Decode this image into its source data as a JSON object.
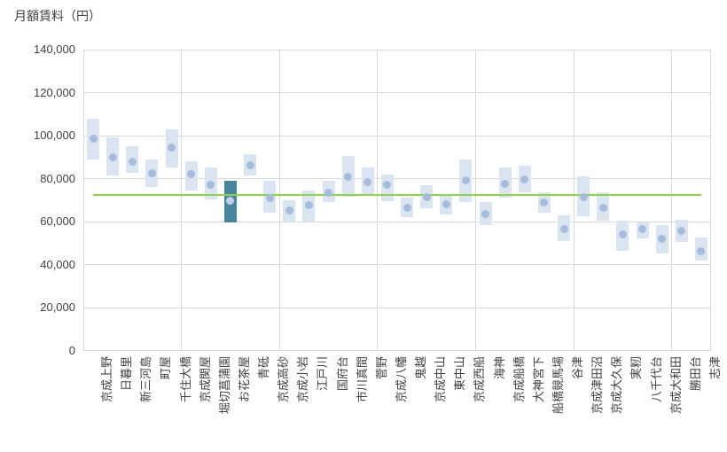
{
  "chart_data": {
    "type": "range-bar-with-median-dots",
    "title": "月額賃料（円）",
    "ylabel": "月額賃料（円）",
    "ylim": [
      0,
      140000
    ],
    "y_tick_interval": 20000,
    "y_tick_labels": [
      "0",
      "20,000",
      "40,000",
      "60,000",
      "80,000",
      "100,000",
      "120,000",
      "140,000"
    ],
    "grid": true,
    "x_gridline_every_n_categories": 5,
    "legend": "none",
    "categories": [
      "京成上野",
      "日暮里",
      "新三河島",
      "町屋",
      "千住大橋",
      "京成関屋",
      "堀切菖蒲園",
      "お花茶屋",
      "青砥",
      "京成高砂",
      "京成小岩",
      "江戸川",
      "国府台",
      "市川真間",
      "菅野",
      "京成八幡",
      "鬼越",
      "京成中山",
      "東中山",
      "京成西船",
      "海神",
      "京成船橋",
      "大神宮下",
      "船橋競馬場",
      "谷津",
      "京成津田沼",
      "京成大久保",
      "実籾",
      "八千代台",
      "京成大和田",
      "勝田台",
      "志津"
    ],
    "series": [
      {
        "name": "range_low",
        "values": [
          89000,
          81500,
          82500,
          76000,
          85000,
          74500,
          70500,
          59500,
          81500,
          64000,
          60000,
          60000,
          69000,
          71500,
          72500,
          69500,
          62000,
          66000,
          63500,
          69000,
          58500,
          71000,
          73500,
          64000,
          51000,
          62500,
          60500,
          46500,
          52000,
          45000,
          50500,
          42000
        ]
      },
      {
        "name": "range_high",
        "values": [
          108000,
          99000,
          95000,
          89000,
          103000,
          88000,
          85000,
          79000,
          91500,
          79000,
          70000,
          74500,
          79000,
          90500,
          85000,
          82000,
          71000,
          77000,
          72500,
          89000,
          69000,
          85000,
          86000,
          73500,
          63000,
          81000,
          73500,
          60500,
          59500,
          58500,
          61000,
          52500
        ]
      },
      {
        "name": "median_dot",
        "values": [
          98500,
          90000,
          88000,
          82500,
          94500,
          82000,
          77000,
          69500,
          86000,
          71000,
          65000,
          67500,
          73500,
          81000,
          78500,
          77000,
          66500,
          71500,
          68000,
          79000,
          63500,
          77500,
          79500,
          69000,
          56500,
          71500,
          66500,
          54000,
          56500,
          52000,
          55500,
          46000
        ]
      }
    ],
    "highlighted_category": "お花茶屋",
    "highlighted_index": 7,
    "reference_line": {
      "value": 72300
    },
    "colors": {
      "bar_fill": "#dbe5f1",
      "dot_fill": "#a6bcdd",
      "highlight_bar_fill": "#46879e",
      "highlight_dot_fill": "#c6cee8",
      "reference_line": "#92d050",
      "gridline": "#d9d9d9",
      "text": "#404040"
    }
  }
}
